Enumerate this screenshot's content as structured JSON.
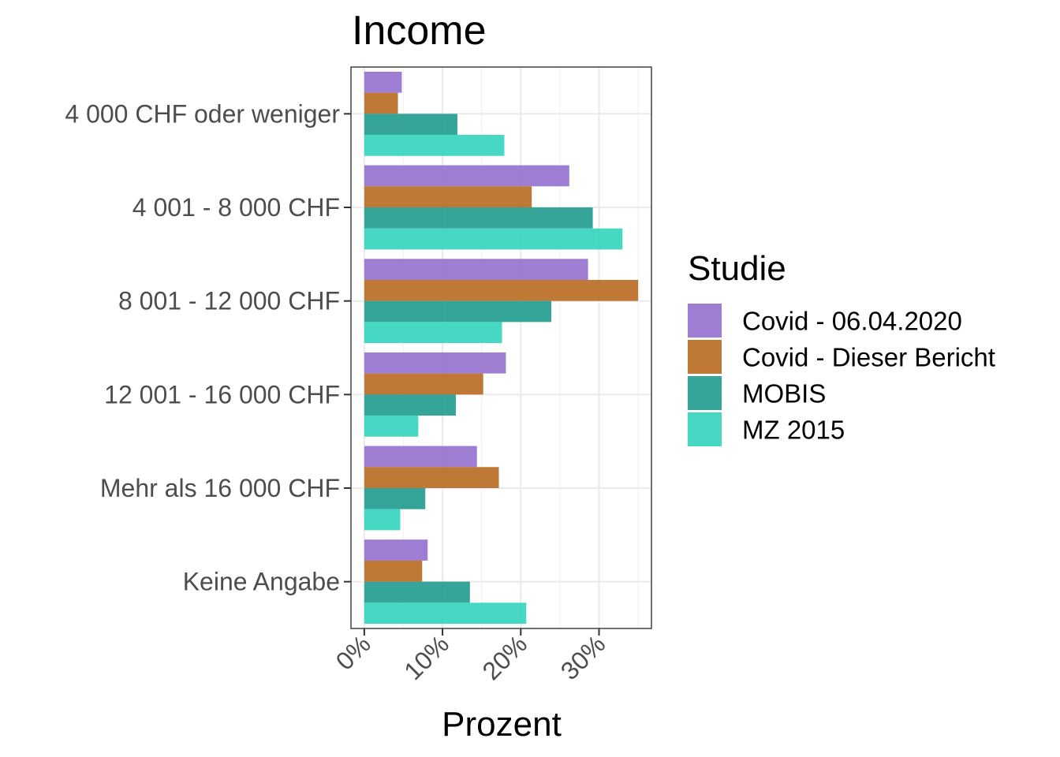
{
  "chart_data": {
    "type": "bar",
    "orientation": "horizontal",
    "title": "Income",
    "xlabel": "Prozent",
    "ylabel": "",
    "xlim": [
      -1.7,
      36.7
    ],
    "xticks": [
      0,
      10,
      20,
      30
    ],
    "xtick_labels": [
      "0%",
      "10%",
      "20%",
      "30%"
    ],
    "grid": true,
    "legend_position": "right",
    "legend_title": "Studie",
    "categories": [
      "4 000 CHF oder weniger",
      "4 001 - 8 000 CHF",
      "8 001 - 12 000 CHF",
      "12 001 - 16 000 CHF",
      "Mehr als 16 000 CHF",
      "Keine Angabe"
    ],
    "series": [
      {
        "name": "Covid - 06.04.2020",
        "color": "#9370CD",
        "values": [
          4.8,
          26.2,
          28.6,
          18.1,
          14.4,
          8.1
        ]
      },
      {
        "name": "Covid - Dieser Bericht",
        "color": "#B8691F",
        "values": [
          4.3,
          21.4,
          35.0,
          15.2,
          17.2,
          7.4
        ]
      },
      {
        "name": "MOBIS",
        "color": "#1F9A8E",
        "values": [
          11.9,
          29.2,
          23.9,
          11.7,
          7.8,
          13.5
        ]
      },
      {
        "name": "MZ 2015",
        "color": "#33D4BC",
        "values": [
          17.9,
          33.0,
          17.6,
          6.9,
          4.6,
          20.7
        ]
      }
    ]
  }
}
